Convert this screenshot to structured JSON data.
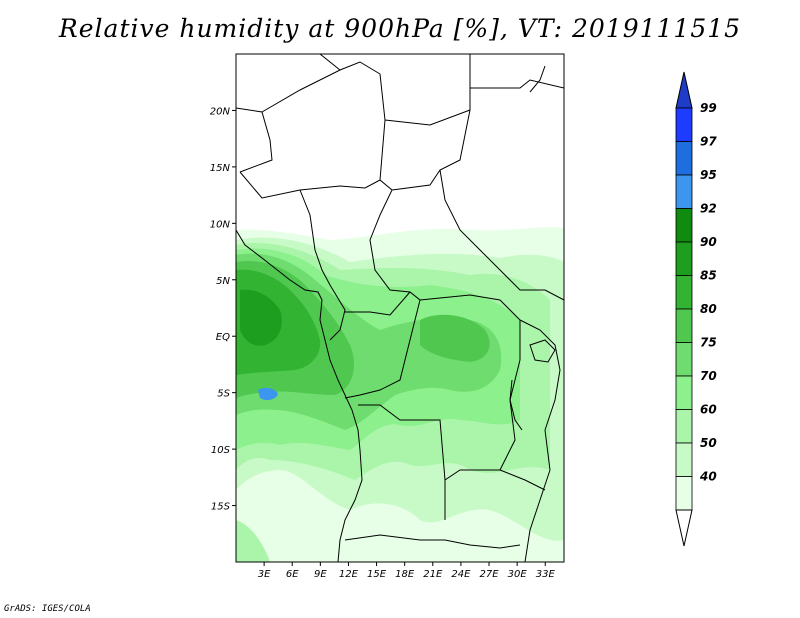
{
  "title": "Relative humidity at 900hPa [%], VT: 2019111515",
  "footer": "GrADS: IGES/COLA",
  "map": {
    "lat_labels": [
      "20N",
      "15N",
      "10N",
      "5N",
      "EQ",
      "5S",
      "10S",
      "15S"
    ],
    "lat_values": [
      20,
      15,
      10,
      5,
      0,
      -5,
      -10,
      -15
    ],
    "lon_labels": [
      "3E",
      "6E",
      "9E",
      "12E",
      "15E",
      "18E",
      "21E",
      "24E",
      "27E",
      "30E",
      "33E"
    ],
    "lon_values": [
      3,
      6,
      9,
      12,
      15,
      18,
      21,
      24,
      27,
      30,
      33
    ],
    "lat_range": [
      -20,
      25
    ],
    "lon_range": [
      0,
      35
    ]
  },
  "colorbar": {
    "labels": [
      "99",
      "97",
      "95",
      "92",
      "90",
      "85",
      "80",
      "75",
      "70",
      "60",
      "50",
      "40"
    ],
    "colors": [
      "#1e3cff",
      "#1e6ee0",
      "#3c96f0",
      "#0f8c0f",
      "#1e9e1e",
      "#32b432",
      "#50c850",
      "#6edc6e",
      "#8cf08c",
      "#aaf5aa",
      "#c8fac8",
      "#e6ffe6"
    ],
    "top_color": "#1e3cc8",
    "bottom_color": "#ffffff"
  },
  "colors": {
    "land_line": "#000000",
    "frame": "#000000"
  }
}
